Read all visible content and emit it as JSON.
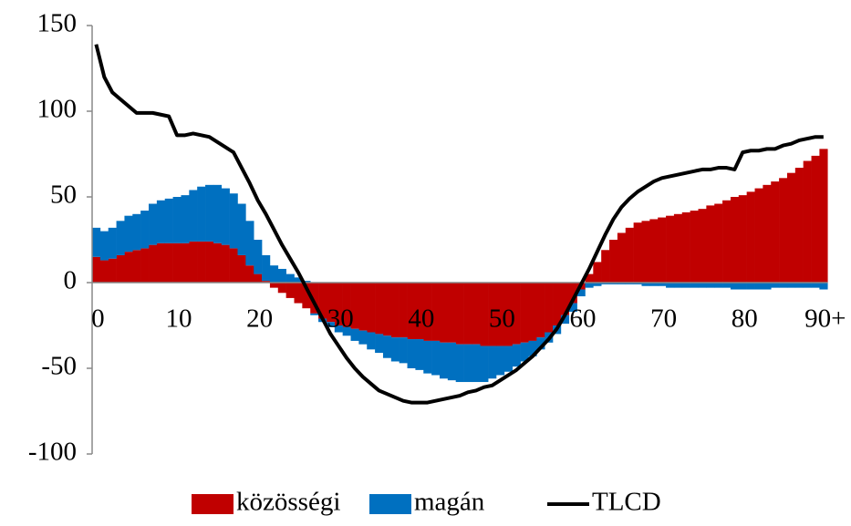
{
  "chart_data": {
    "type": "bar-line",
    "categories": [
      "0",
      null,
      null,
      null,
      null,
      null,
      null,
      null,
      null,
      null,
      "10",
      null,
      null,
      null,
      null,
      null,
      null,
      null,
      null,
      null,
      "20",
      null,
      null,
      null,
      null,
      null,
      null,
      null,
      null,
      null,
      "30",
      null,
      null,
      null,
      null,
      null,
      null,
      null,
      null,
      null,
      "40",
      null,
      null,
      null,
      null,
      null,
      null,
      null,
      null,
      null,
      "50",
      null,
      null,
      null,
      null,
      null,
      null,
      null,
      null,
      null,
      "60",
      null,
      null,
      null,
      null,
      null,
      null,
      null,
      null,
      null,
      "70",
      null,
      null,
      null,
      null,
      null,
      null,
      null,
      null,
      null,
      "80",
      null,
      null,
      null,
      null,
      null,
      null,
      null,
      null,
      null,
      "90+"
    ],
    "series": [
      {
        "name": "közösségi",
        "color": "#c00000",
        "kind": "bar",
        "values": [
          15,
          13,
          14,
          16,
          18,
          19,
          20,
          22,
          23,
          23,
          23,
          23,
          24,
          24,
          24,
          23,
          22,
          20,
          16,
          10,
          5,
          1,
          -3,
          -6,
          -9,
          -12,
          -15,
          -18,
          -21,
          -23,
          -25,
          -26,
          -27,
          -28,
          -29,
          -30,
          -31,
          -32,
          -32,
          -33,
          -33,
          -34,
          -34,
          -35,
          -35,
          -36,
          -36,
          -36,
          -37,
          -37,
          -37,
          -37,
          -36,
          -35,
          -34,
          -32,
          -29,
          -25,
          -19,
          -12,
          -4,
          5,
          12,
          19,
          25,
          29,
          32,
          35,
          36,
          37,
          38,
          39,
          40,
          41,
          42,
          43,
          45,
          46,
          48,
          50,
          51,
          53,
          55,
          57,
          59,
          61,
          64,
          67,
          71,
          74,
          78
        ]
      },
      {
        "name": "magán",
        "color": "#0070c0",
        "kind": "bar",
        "values": [
          17,
          17,
          18,
          20,
          21,
          21,
          22,
          24,
          25,
          26,
          27,
          28,
          30,
          32,
          33,
          34,
          33,
          32,
          30,
          26,
          20,
          15,
          10,
          8,
          5,
          3,
          1,
          -1,
          -2,
          -3,
          -4,
          -5,
          -7,
          -8,
          -10,
          -11,
          -13,
          -14,
          -15,
          -17,
          -18,
          -19,
          -20,
          -21,
          -22,
          -22,
          -22,
          -22,
          -21,
          -19,
          -17,
          -15,
          -13,
          -11,
          -9,
          -7,
          -6,
          -5,
          -5,
          -5,
          -4,
          -3,
          -2,
          -1,
          -1,
          -1,
          -1,
          -1,
          -2,
          -2,
          -2,
          -3,
          -3,
          -3,
          -3,
          -3,
          -3,
          -3,
          -3,
          -4,
          -4,
          -4,
          -4,
          -4,
          -3,
          -3,
          -3,
          -3,
          -3,
          -3,
          -4
        ]
      },
      {
        "name": "TLCD",
        "color": "#000000",
        "kind": "line",
        "values": [
          139,
          120,
          111,
          107,
          103,
          99,
          99,
          99,
          98,
          97,
          86,
          86,
          87,
          86,
          85,
          82,
          79,
          76,
          67,
          58,
          48,
          40,
          31,
          22,
          14,
          6,
          -3,
          -12,
          -21,
          -30,
          -37,
          -44,
          -50,
          -55,
          -59,
          -63,
          -65,
          -67,
          -69,
          -70,
          -70,
          -70,
          -69,
          -68,
          -67,
          -66,
          -64,
          -63,
          -61,
          -60,
          -57,
          -54,
          -51,
          -47,
          -43,
          -38,
          -33,
          -27,
          -19,
          -10,
          -1,
          8,
          18,
          28,
          37,
          44,
          49,
          53,
          56,
          59,
          61,
          62,
          63,
          64,
          65,
          66,
          66,
          67,
          67,
          66,
          76,
          77,
          77,
          78,
          78,
          80,
          81,
          83,
          84,
          85,
          85
        ]
      }
    ],
    "ylim": [
      -100,
      150
    ],
    "yticks": [
      -100,
      -50,
      0,
      50,
      100,
      150
    ],
    "stacked": true,
    "grid": false,
    "legend": "bottom"
  }
}
